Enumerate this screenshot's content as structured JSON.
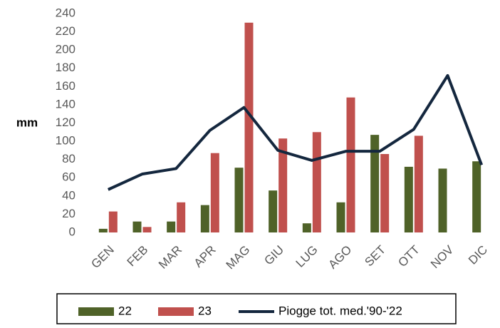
{
  "chart_data": {
    "type": "bar",
    "ylabel": "mm",
    "categories": [
      "GEN",
      "FEB",
      "MAR",
      "APR",
      "MAG",
      "GIU",
      "LUG",
      "AGO",
      "SET",
      "OTT",
      "NOV",
      "DIC"
    ],
    "series": [
      {
        "name": "22",
        "type": "bar",
        "color": "#4f6228",
        "values": [
          4,
          12,
          12,
          30,
          71,
          46,
          10,
          33,
          107,
          72,
          70,
          78
        ]
      },
      {
        "name": "23",
        "type": "bar",
        "color": "#c0504d",
        "values": [
          23,
          6,
          33,
          87,
          230,
          103,
          110,
          148,
          86,
          106,
          null,
          null
        ]
      },
      {
        "name": "Piogge tot. med.'90-'22",
        "type": "line",
        "color": "#14273e",
        "values": [
          47,
          64,
          70,
          112,
          137,
          90,
          79,
          89,
          89,
          113,
          172,
          74
        ]
      }
    ],
    "ylim": [
      0,
      240
    ],
    "yticks": [
      0,
      20,
      40,
      60,
      80,
      100,
      120,
      140,
      160,
      180,
      200,
      220,
      240
    ],
    "legend": "bottom"
  }
}
